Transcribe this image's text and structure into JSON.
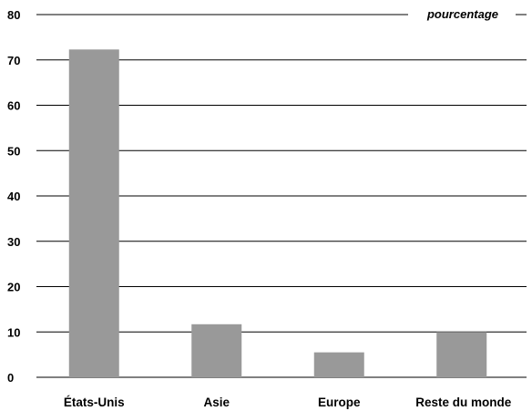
{
  "chart_data": {
    "type": "bar",
    "unit_label": "pourcentage",
    "categories": [
      "États-Unis",
      "Asie",
      "Europe",
      "Reste du monde"
    ],
    "values": [
      72.3,
      11.7,
      5.5,
      10.0
    ],
    "ylim": [
      0,
      80
    ],
    "yticks": [
      "0",
      "10",
      "20",
      "30",
      "40",
      "50",
      "60",
      "70",
      "80"
    ],
    "grid": true,
    "bar_color": "#999999",
    "grid_color": "#000000"
  }
}
